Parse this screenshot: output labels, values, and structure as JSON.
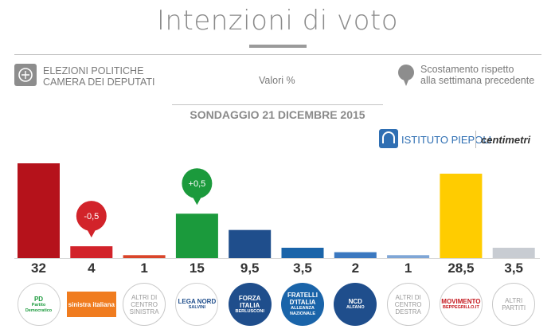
{
  "header": {
    "title": "Intenzioni di voto",
    "election_line1": "ELEZIONI POLITICHE",
    "election_line2": "CAMERA DEI DEPUTATI",
    "units_label": "Valori %",
    "shift_line1": "Scostamento rispetto",
    "shift_line2": "alla settimana precedente",
    "survey_date": "SONDAGGIO 21 DICEMBRE 2015",
    "source_logo": "ISTITUTO PIEPOLI",
    "partner_logo": "centimetri"
  },
  "chart_data": {
    "type": "bar",
    "title": "Intenzioni di voto",
    "categories": [
      "PD",
      "Sinistra Italiana",
      "Altri di centro sinistra",
      "Lega Nord",
      "Forza Italia",
      "Fratelli d'Italia",
      "NCD",
      "Altri di centro destra",
      "Movimento 5 Stelle",
      "Altri partiti"
    ],
    "values": [
      32,
      4,
      1,
      15,
      9.5,
      3.5,
      2,
      1,
      28.5,
      3.5
    ],
    "value_labels": [
      "32",
      "4",
      "1",
      "15",
      "9,5",
      "3,5",
      "2",
      "1",
      "28,5",
      "3,5"
    ],
    "colors": [
      "#b5121b",
      "#d2232a",
      "#d9452a",
      "#1b9a3c",
      "#1f4e8c",
      "#1a64a9",
      "#3b78c0",
      "#7fa6d6",
      "#ffcc00",
      "#c8ccd2"
    ],
    "changes": [
      {
        "index": 1,
        "label": "-0,5",
        "color": "#d2232a"
      },
      {
        "index": 3,
        "label": "+0,5",
        "color": "#1b9a3c"
      }
    ],
    "ylim": [
      0,
      32
    ],
    "grid": false,
    "legend": "none"
  },
  "logos": [
    {
      "text": "PD",
      "sub": "Partito Democratico",
      "bg": "#ffffff",
      "fg": "#1b9a3c",
      "style": "round"
    },
    {
      "text": "sinistra italiana",
      "sub": "",
      "bg": "#f07c1f",
      "fg": "#ffffff",
      "style": "rect"
    },
    {
      "text": "ALTRI DI CENTRO SINISTRA",
      "sub": "",
      "bg": "#ffffff",
      "fg": "#9a9a9a",
      "style": "plain"
    },
    {
      "text": "LEGA NORD",
      "sub": "SALVINI",
      "bg": "#ffffff",
      "fg": "#1f4e8c",
      "style": "round"
    },
    {
      "text": "FORZA ITALIA",
      "sub": "BERLUSCONI",
      "bg": "#1f4e8c",
      "fg": "#ffffff",
      "style": "round"
    },
    {
      "text": "FRATELLI D'ITALIA",
      "sub": "ALLEANZA NAZIONALE",
      "bg": "#1a64a9",
      "fg": "#ffffff",
      "style": "round"
    },
    {
      "text": "NCD",
      "sub": "ALFANO",
      "bg": "#1f4e8c",
      "fg": "#ffffff",
      "style": "round"
    },
    {
      "text": "ALTRI DI CENTRO DESTRA",
      "sub": "",
      "bg": "#ffffff",
      "fg": "#9a9a9a",
      "style": "plain"
    },
    {
      "text": "MOVIMENTO",
      "sub": "BEPPEGRILLO.IT",
      "bg": "#ffffff",
      "fg": "#c4161c",
      "style": "round"
    },
    {
      "text": "ALTRI PARTITI",
      "sub": "",
      "bg": "#ffffff",
      "fg": "#9a9a9a",
      "style": "plain"
    }
  ]
}
